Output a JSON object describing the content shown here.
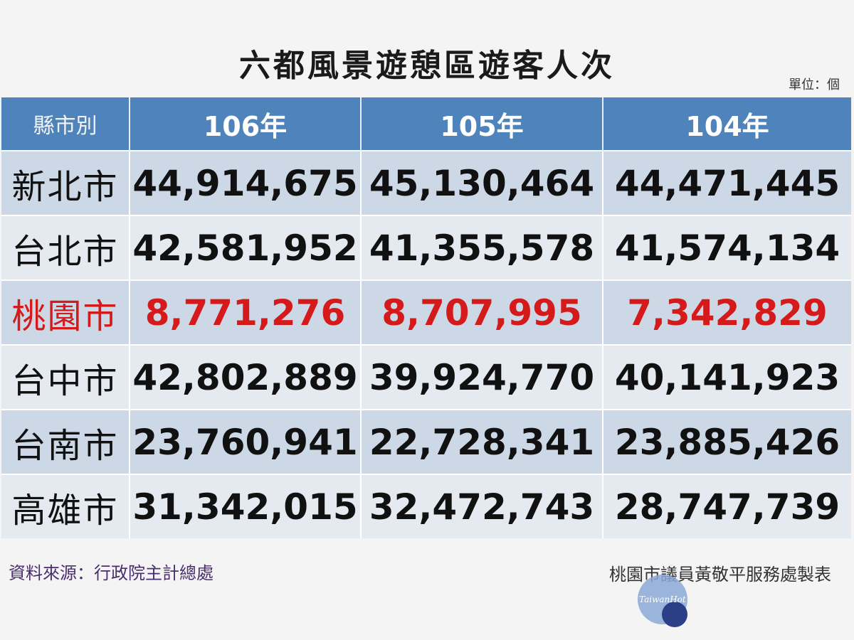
{
  "title": "六都風景遊憩區遊客人次",
  "unit": "單位：個",
  "table": {
    "headers": [
      "縣市別",
      "106年",
      "105年",
      "104年"
    ],
    "rows": [
      {
        "city": "新北市",
        "values": [
          "44,914,675",
          "45,130,464",
          "44,471,445"
        ]
      },
      {
        "city": "台北市",
        "values": [
          "42,581,952",
          "41,355,578",
          "41,574,134"
        ]
      },
      {
        "city": "桃園市",
        "values": [
          "8,771,276",
          "8,707,995",
          "7,342,829"
        ]
      },
      {
        "city": "台中市",
        "values": [
          "42,802,889",
          "39,924,770",
          "40,141,923"
        ]
      },
      {
        "city": "台南市",
        "values": [
          "23,760,941",
          "22,728,341",
          "23,885,426"
        ]
      },
      {
        "city": "高雄市",
        "values": [
          "31,342,015",
          "32,472,743",
          "28,747,739"
        ]
      }
    ],
    "highlight_row_color": "#d41a1a",
    "header_color": "#4e84bb"
  },
  "source": "資料來源：行政院主計總處",
  "maker": "桃園市議員黃敬平服務處製表",
  "watermark_logo": "TaiwanHot"
}
